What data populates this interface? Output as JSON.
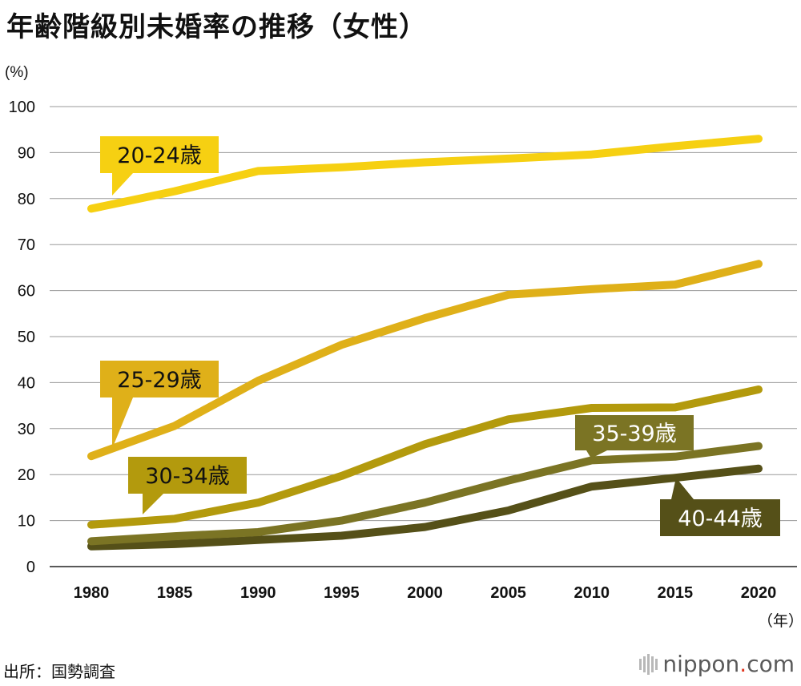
{
  "title": "年齢階級別未婚率の推移（女性）",
  "source": "出所：国勢調査",
  "brand": {
    "name": "nippon",
    "dot": ".",
    "tld": "com"
  },
  "chart_data": {
    "type": "line",
    "title": "年齢階級別未婚率の推移（女性）",
    "ylabel": "(%)",
    "xlabel": "（年）",
    "ylim": [
      0,
      100
    ],
    "yticks": [
      0,
      10,
      20,
      30,
      40,
      50,
      60,
      70,
      80,
      90,
      100
    ],
    "x": [
      "1980",
      "1985",
      "1990",
      "1995",
      "2000",
      "2005",
      "2010",
      "2015",
      "2020"
    ],
    "grid": "horizontal",
    "series": [
      {
        "name": "20-24歳",
        "color": "#f6d012",
        "text_color": "#111111",
        "values": [
          77.8,
          81.6,
          86.0,
          86.8,
          87.9,
          88.7,
          89.6,
          91.4,
          93.0
        ]
      },
      {
        "name": "25-29歳",
        "color": "#dfb019",
        "text_color": "#111111",
        "values": [
          24.0,
          30.6,
          40.4,
          48.2,
          54.0,
          59.1,
          60.3,
          61.3,
          65.8
        ]
      },
      {
        "name": "30-34歳",
        "color": "#b39a0d",
        "text_color": "#111111",
        "values": [
          9.1,
          10.4,
          13.9,
          19.7,
          26.6,
          32.0,
          34.5,
          34.6,
          38.5
        ]
      },
      {
        "name": "35-39歳",
        "color": "#7b7424",
        "text_color": "#ffffff",
        "values": [
          5.5,
          6.6,
          7.5,
          10.0,
          13.9,
          18.7,
          23.1,
          23.9,
          26.2
        ]
      },
      {
        "name": "40-44歳",
        "color": "#555018",
        "text_color": "#ffffff",
        "values": [
          4.4,
          4.9,
          5.8,
          6.7,
          8.6,
          12.2,
          17.4,
          19.3,
          21.3
        ]
      }
    ]
  }
}
